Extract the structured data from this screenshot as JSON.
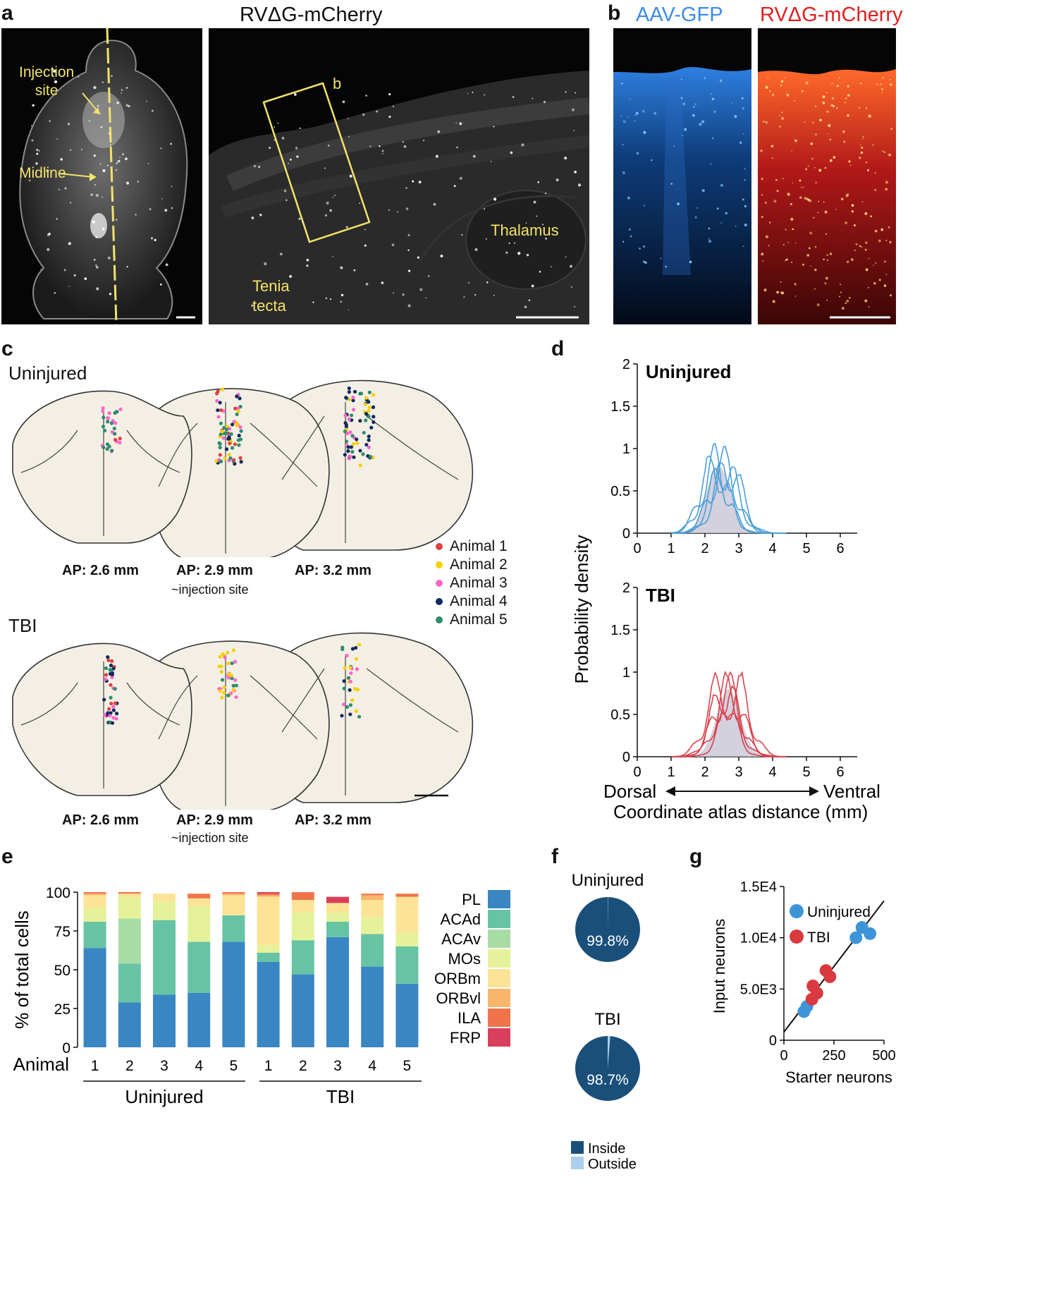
{
  "panels": {
    "a": "a",
    "b": "b",
    "c": "c",
    "d": "d",
    "e": "e",
    "f": "f",
    "g": "g"
  },
  "panel_a": {
    "title": "RVΔG-mCherry",
    "injection_label_1": "Injection",
    "injection_label_2": "site",
    "midline_label": "Midline",
    "box_label": "b",
    "tenia_1": "Tenia",
    "tenia_2": "tecta",
    "thalamus": "Thalamus"
  },
  "panel_b": {
    "gfp_title": "AAV-GFP",
    "mcherry_title": "RVΔG-mCherry",
    "colors": {
      "gfp": "#3b8ce8",
      "mcherry": "#e02020"
    }
  },
  "panel_c": {
    "uninjured_label": "Uninjured",
    "tbi_label": "TBI",
    "ap_labels": [
      "AP: 2.6 mm",
      "AP: 2.9 mm",
      "AP: 3.2 mm"
    ],
    "injection_note": "~injection site",
    "legend": [
      {
        "label": "Animal 1",
        "color": "#e04040"
      },
      {
        "label": "Animal 2",
        "color": "#f5d000"
      },
      {
        "label": "Animal 3",
        "color": "#ff66cc"
      },
      {
        "label": "Animal 4",
        "color": "#0f2a5e"
      },
      {
        "label": "Animal 5",
        "color": "#2e8b6e"
      }
    ]
  },
  "chart_data": [
    {
      "id": "d",
      "type": "line",
      "title_top": "Uninjured",
      "title_bottom": "TBI",
      "ylabel": "Probability density",
      "xlabel": "Coordinate atlas distance (mm)",
      "dorsal": "Dorsal",
      "ventral": "Ventral",
      "xlim": [
        0,
        6.5
      ],
      "ylim": [
        0,
        2
      ],
      "xticks": [
        "0",
        "1",
        "2",
        "3",
        "4",
        "5",
        "6"
      ],
      "yticks": [
        "0",
        "0.5",
        "1",
        "1.5",
        "2"
      ],
      "series_colors": {
        "uninjured": "#4a9fd8",
        "tbi": "#d9434c",
        "mean_fill": "#c9c6d6"
      }
    },
    {
      "id": "e",
      "type": "bar",
      "stacked": true,
      "ylabel": "% of total cells",
      "x_prefix": "Animal",
      "categories": [
        "1",
        "2",
        "3",
        "4",
        "5",
        "1",
        "2",
        "3",
        "4",
        "5"
      ],
      "groups": [
        "Uninjured",
        "TBI"
      ],
      "yticks": [
        "0",
        "25",
        "50",
        "75",
        "100"
      ],
      "ylim": [
        0,
        100
      ],
      "series": [
        {
          "name": "PL",
          "color": "#3a86c3",
          "values": [
            64,
            29,
            34,
            35,
            68,
            55,
            47,
            71,
            52,
            41
          ]
        },
        {
          "name": "ACAd",
          "color": "#66c4a4",
          "values": [
            17,
            25,
            48,
            33,
            17,
            6,
            22,
            10,
            21,
            24
          ]
        },
        {
          "name": "ACAv",
          "color": "#a8dca5",
          "values": [
            0,
            29,
            0,
            0,
            0,
            0,
            0,
            0,
            0,
            0
          ]
        },
        {
          "name": "MOs",
          "color": "#e6f29a",
          "values": [
            9,
            14,
            12,
            23,
            0,
            5,
            18,
            6,
            11,
            9
          ]
        },
        {
          "name": "ORBm",
          "color": "#fde396",
          "values": [
            8,
            2,
            5,
            5,
            13,
            31,
            8,
            6,
            11,
            23
          ]
        },
        {
          "name": "ORBvl",
          "color": "#f9b66b",
          "values": [
            1,
            0,
            0,
            0,
            1,
            1,
            0,
            0,
            3,
            0
          ]
        },
        {
          "name": "ILA",
          "color": "#f0744a",
          "values": [
            1,
            1,
            0,
            3,
            1,
            1,
            5,
            0,
            1,
            2
          ]
        },
        {
          "name": "FRP",
          "color": "#d93f5a",
          "values": [
            0,
            0,
            0,
            0,
            0,
            1,
            0,
            4,
            0,
            0
          ]
        }
      ]
    },
    {
      "id": "f",
      "type": "pie",
      "pies": [
        {
          "title": "Uninjured",
          "label": "99.8%",
          "inside": 99.8,
          "outside": 0.2
        },
        {
          "title": "TBI",
          "label": "98.7%",
          "inside": 98.7,
          "outside": 1.3
        }
      ],
      "legend": [
        {
          "label": "Inside",
          "color": "#1a4f7a"
        },
        {
          "label": "Outside",
          "color": "#a9d0ee"
        }
      ]
    },
    {
      "id": "g",
      "type": "scatter",
      "xlabel": "Starter neurons",
      "ylabel": "Input neurons",
      "xlim": [
        0,
        500
      ],
      "ylim": [
        0,
        15000
      ],
      "xticks": [
        "0",
        "250",
        "500"
      ],
      "yticks": [
        "0",
        "5.0E3",
        "1.0E4",
        "1.5E4"
      ],
      "series": [
        {
          "name": "Uninjured",
          "color": "#3d95d8",
          "x": [
            100,
            115,
            360,
            390,
            430
          ],
          "y": [
            2800,
            3300,
            10000,
            11000,
            10400
          ]
        },
        {
          "name": "TBI",
          "color": "#d93a3f",
          "x": [
            140,
            145,
            165,
            210,
            230
          ],
          "y": [
            4000,
            5300,
            4600,
            6800,
            6200
          ]
        }
      ],
      "fit": {
        "x": [
          0,
          500
        ],
        "y": [
          800,
          13600
        ]
      }
    }
  ]
}
